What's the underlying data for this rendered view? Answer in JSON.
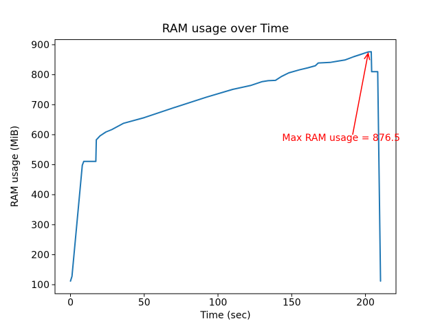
{
  "figure": {
    "background": "#ffffff",
    "text_color": "#000000"
  },
  "chart_data": {
    "type": "line",
    "title": "RAM usage over Time",
    "xlabel": "Time (sec)",
    "ylabel": "RAM usage (MiB)",
    "xticks": [
      0,
      50,
      100,
      150,
      200
    ],
    "yticks": [
      100,
      200,
      300,
      400,
      500,
      600,
      700,
      800,
      900
    ],
    "xlim": [
      -10.5,
      220.7
    ],
    "ylim": [
      70,
      917
    ],
    "grid": false,
    "legend": null,
    "line_color": "#1f77b4",
    "max_value": 876.5,
    "series": [
      {
        "name": "RAM usage",
        "points": [
          [
            0,
            112
          ],
          [
            1,
            128
          ],
          [
            8,
            498
          ],
          [
            9,
            511
          ],
          [
            17.2,
            511
          ],
          [
            17.5,
            583
          ],
          [
            18.5,
            588
          ],
          [
            20,
            596
          ],
          [
            24,
            609
          ],
          [
            28,
            617
          ],
          [
            36,
            638
          ],
          [
            50,
            657
          ],
          [
            70,
            690
          ],
          [
            92,
            725
          ],
          [
            110,
            751
          ],
          [
            122,
            764
          ],
          [
            130,
            777
          ],
          [
            134,
            780
          ],
          [
            139,
            781
          ],
          [
            143,
            794
          ],
          [
            148,
            806
          ],
          [
            155,
            816
          ],
          [
            161,
            823
          ],
          [
            166,
            830
          ],
          [
            168,
            839
          ],
          [
            176,
            841
          ],
          [
            181,
            845
          ],
          [
            186,
            849
          ],
          [
            192,
            860
          ],
          [
            197,
            868
          ],
          [
            200,
            873
          ],
          [
            202,
            876
          ],
          [
            203.9,
            876.5
          ],
          [
            204.2,
            810
          ],
          [
            208.3,
            810
          ],
          [
            210.2,
            112
          ]
        ]
      }
    ],
    "annotation": {
      "text": "Max RAM usage = 876.5",
      "color": "#ff0000",
      "text_pos": [
        143.5,
        579
      ],
      "arrow_from": [
        191.3,
        600
      ],
      "arrow_to": [
        201.8,
        871
      ]
    }
  }
}
